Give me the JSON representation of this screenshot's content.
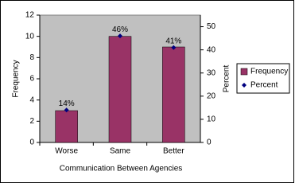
{
  "chart_data": {
    "type": "bar",
    "x_label": "Communication Between Agencies",
    "y_label": "Frequency",
    "y2_label": "Percent",
    "categories": [
      "Worse",
      "Same",
      "Better"
    ],
    "series": [
      {
        "name": "Frequency",
        "color": "#993366",
        "values": [
          3,
          10,
          9
        ]
      },
      {
        "name": "Percent",
        "color": "#000080",
        "axis": "y2",
        "values": [
          14,
          46,
          41
        ],
        "value_labels": [
          "14%",
          "46%",
          "41%"
        ]
      }
    ],
    "ylim": [
      0,
      12
    ],
    "yticks": [
      0,
      2,
      4,
      6,
      8,
      10,
      12
    ],
    "y2lim": [
      0,
      55
    ],
    "y2ticks": [
      0,
      10,
      20,
      30,
      40,
      50
    ],
    "grid": false,
    "legend": "right",
    "plot_background": "#c0c0c0"
  }
}
